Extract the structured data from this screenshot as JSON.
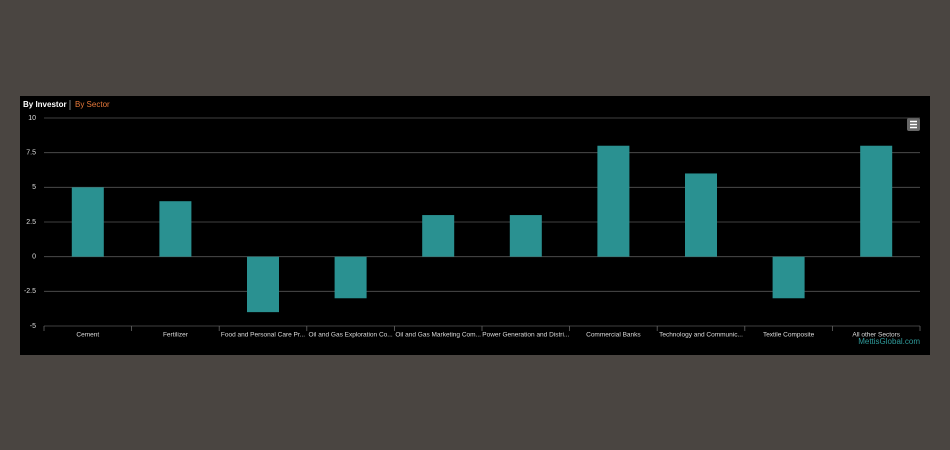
{
  "tabs": [
    "By Investor",
    "By Sector"
  ],
  "credit": "MettisGlobal.com",
  "chart_data": {
    "type": "bar",
    "categories": [
      "Cement",
      "Fertilizer",
      "Food and Personal Care Pr...",
      "Oil and Gas Exploration Co...",
      "Oil and Gas Marketing Com...",
      "Power Generation and Distri...",
      "Commercial Banks",
      "Technology and Communic...",
      "Textile Composite",
      "All other Sectors"
    ],
    "values": [
      5,
      4,
      -4,
      -3,
      3,
      3,
      8,
      6,
      -3,
      8
    ],
    "color": "#2a9191",
    "ylim": [
      -5,
      10
    ],
    "yticks": [
      -5,
      -2.5,
      0,
      2.5,
      5,
      7.5,
      10
    ],
    "grid": true
  }
}
